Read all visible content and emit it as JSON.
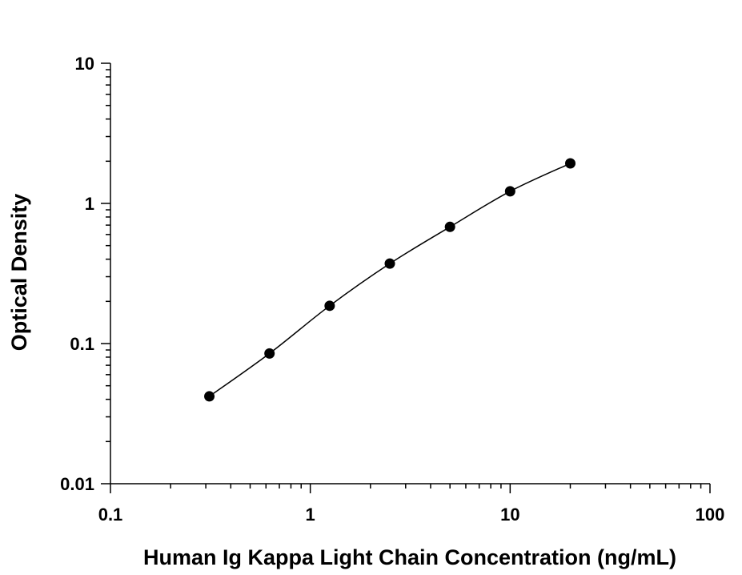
{
  "chart_data": {
    "type": "scatter",
    "x_label": "Human Ig Kappa Light Chain Concentration (ng/mL)",
    "y_label": "Optical Density",
    "x": [
      0.3125,
      0.625,
      1.25,
      2.5,
      5,
      10,
      20
    ],
    "values": [
      0.042,
      0.085,
      0.186,
      0.372,
      0.68,
      1.22,
      1.93
    ],
    "color": "#000000",
    "fit_curve": true,
    "x_log": true,
    "y_log": true,
    "xlim": [
      0.1,
      100
    ],
    "xticks": [
      0.1,
      1,
      10,
      100
    ],
    "ylim": [
      0.01,
      10
    ],
    "yticks": [
      0.01,
      0.1,
      1,
      10
    ]
  }
}
